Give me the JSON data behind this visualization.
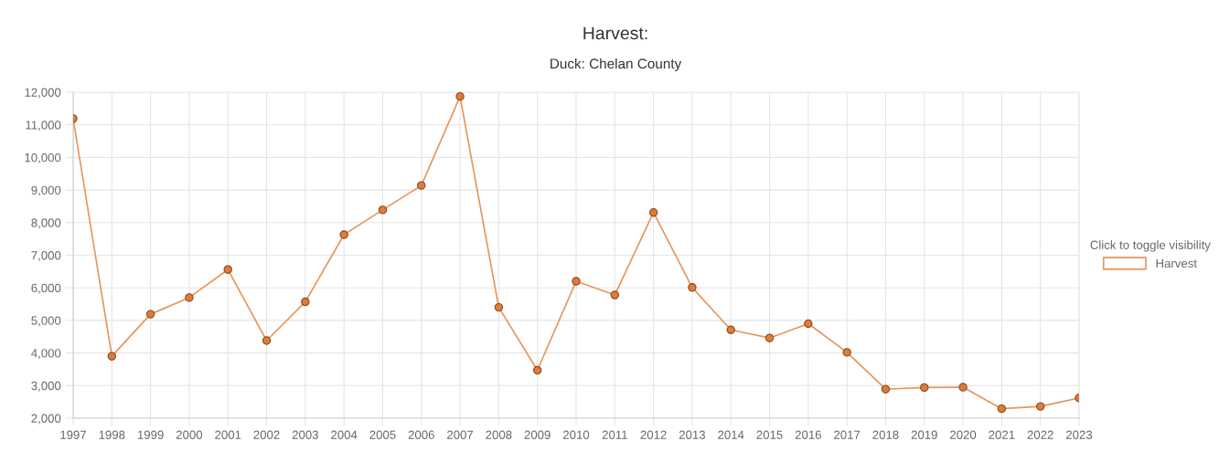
{
  "chart_data": {
    "type": "line",
    "title": "Harvest:",
    "subtitle": "Duck: Chelan County",
    "legend_title": "Click to toggle visibility",
    "categories": [
      "1997",
      "1998",
      "1999",
      "2000",
      "2001",
      "2002",
      "2003",
      "2004",
      "2005",
      "2006",
      "2007",
      "2008",
      "2009",
      "2010",
      "2011",
      "2012",
      "2013",
      "2014",
      "2015",
      "2016",
      "2017",
      "2018",
      "2019",
      "2020",
      "2021",
      "2022",
      "2023"
    ],
    "series": [
      {
        "name": "Harvest",
        "color": "#e8955a",
        "values": [
          11190,
          3900,
          5190,
          5700,
          6560,
          4380,
          5570,
          7630,
          8390,
          9140,
          11870,
          5400,
          3470,
          6200,
          5780,
          8310,
          6010,
          4710,
          4460,
          4900,
          4020,
          2890,
          2940,
          2950,
          2290,
          2360,
          2620
        ]
      }
    ],
    "ylim": [
      2000,
      12000
    ],
    "yticks": [
      {
        "value": 2000,
        "label": "2,000"
      },
      {
        "value": 3000,
        "label": "3,000"
      },
      {
        "value": 4000,
        "label": "4,000"
      },
      {
        "value": 5000,
        "label": "5,000"
      },
      {
        "value": 6000,
        "label": "6,000"
      },
      {
        "value": 7000,
        "label": "7,000"
      },
      {
        "value": 8000,
        "label": "8,000"
      },
      {
        "value": 9000,
        "label": "9,000"
      },
      {
        "value": 10000,
        "label": "10,000"
      },
      {
        "value": 11000,
        "label": "11,000"
      },
      {
        "value": 12000,
        "label": "12,000"
      }
    ],
    "grid": true,
    "legend": "right",
    "marker": "circle",
    "line_style": "solid"
  }
}
